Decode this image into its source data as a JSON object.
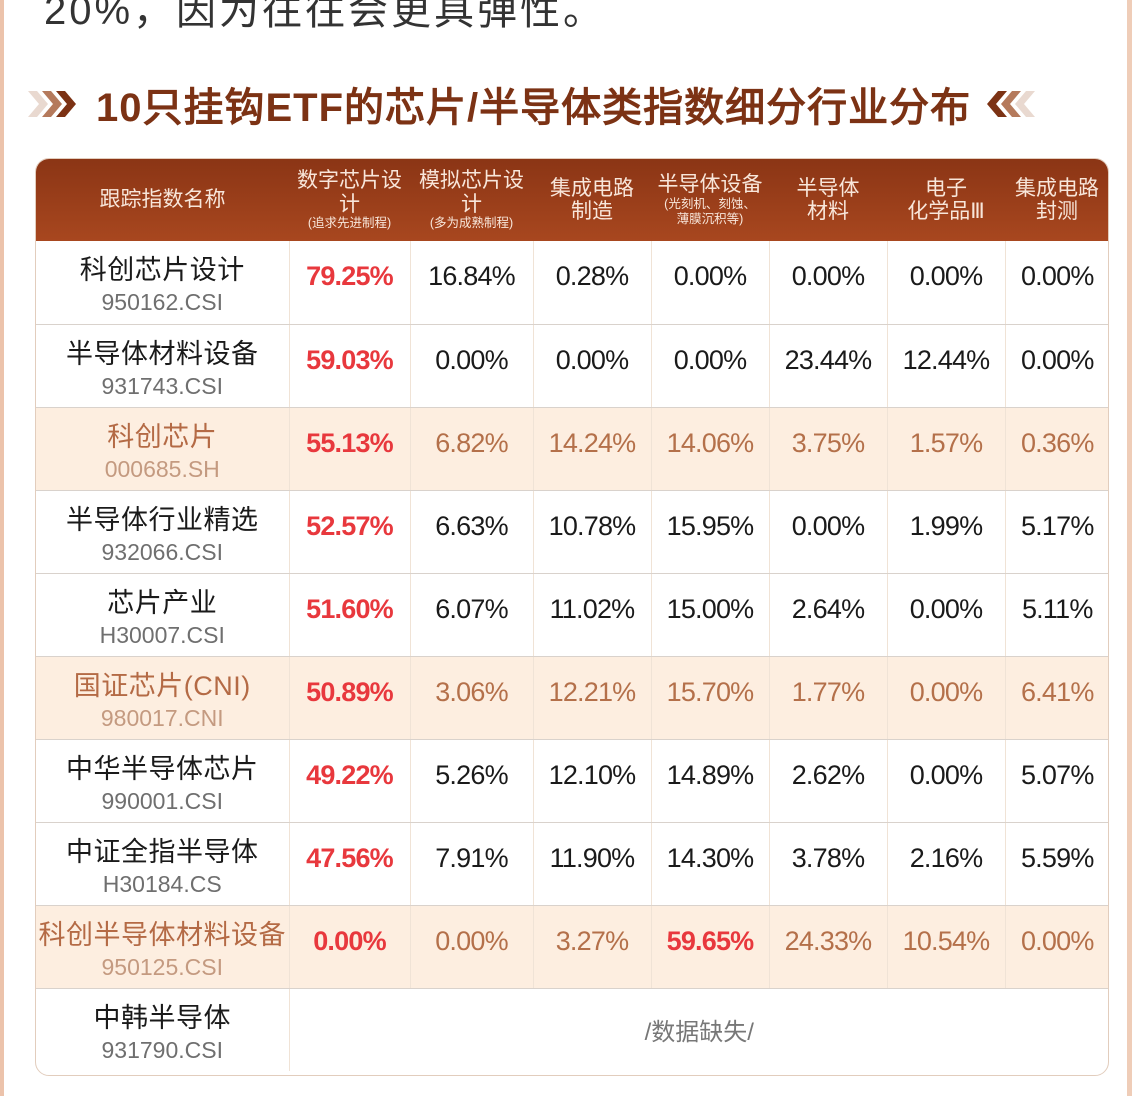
{
  "intro_text": "20%，因为往往会更具弹性。",
  "section": {
    "title": "10只挂钩ETF的芯片/半导体类指数细分行业分布",
    "left_icon": "double-chevron-right-icon",
    "right_icon": "double-chevron-left-icon",
    "accent_color": "#7c3214"
  },
  "table": {
    "header_colors": {
      "from": "#8b3515",
      "to": "#a8471f",
      "text": "#f8e6da"
    },
    "columns": [
      {
        "label": "跟踪指数名称",
        "sub": ""
      },
      {
        "label": "数字芯片设计",
        "sub": "(追求先进制程)"
      },
      {
        "label": "模拟芯片设计",
        "sub": "(多为成熟制程)"
      },
      {
        "label": "集成电路",
        "label2": "制造",
        "sub": ""
      },
      {
        "label": "半导体设备",
        "sub": "(光刻机、刻蚀、",
        "sub2": "薄膜沉积等)"
      },
      {
        "label": "半导体",
        "label2": "材料",
        "sub": ""
      },
      {
        "label": "电子",
        "label2": "化学品Ⅲ",
        "sub": ""
      },
      {
        "label": "集成电路",
        "label2": "封测",
        "sub": ""
      }
    ],
    "rows": [
      {
        "name": "科创芯片设计",
        "code": "950162.CSI",
        "highlight": false,
        "values": [
          "79.25%",
          "16.84%",
          "0.28%",
          "0.00%",
          "0.00%",
          "0.00%",
          "0.00%"
        ],
        "emphasis": [
          0
        ]
      },
      {
        "name": "半导体材料设备",
        "code": "931743.CSI",
        "highlight": false,
        "values": [
          "59.03%",
          "0.00%",
          "0.00%",
          "0.00%",
          "23.44%",
          "12.44%",
          "0.00%"
        ],
        "emphasis": [
          0
        ]
      },
      {
        "name": "科创芯片",
        "code": "000685.SH",
        "highlight": true,
        "values": [
          "55.13%",
          "6.82%",
          "14.24%",
          "14.06%",
          "3.75%",
          "1.57%",
          "0.36%"
        ],
        "emphasis": [
          0
        ]
      },
      {
        "name": "半导体行业精选",
        "code": "932066.CSI",
        "highlight": false,
        "values": [
          "52.57%",
          "6.63%",
          "10.78%",
          "15.95%",
          "0.00%",
          "1.99%",
          "5.17%"
        ],
        "emphasis": [
          0
        ]
      },
      {
        "name": "芯片产业",
        "code": "H30007.CSI",
        "highlight": false,
        "values": [
          "51.60%",
          "6.07%",
          "11.02%",
          "15.00%",
          "2.64%",
          "0.00%",
          "5.11%"
        ],
        "emphasis": [
          0
        ]
      },
      {
        "name": "国证芯片(CNI)",
        "code": "980017.CNI",
        "highlight": true,
        "values": [
          "50.89%",
          "3.06%",
          "12.21%",
          "15.70%",
          "1.77%",
          "0.00%",
          "6.41%"
        ],
        "emphasis": [
          0
        ]
      },
      {
        "name": "中华半导体芯片",
        "code": "990001.CSI",
        "highlight": false,
        "values": [
          "49.22%",
          "5.26%",
          "12.10%",
          "14.89%",
          "2.62%",
          "0.00%",
          "5.07%"
        ],
        "emphasis": [
          0
        ]
      },
      {
        "name": "中证全指半导体",
        "code": "H30184.CS",
        "highlight": false,
        "values": [
          "47.56%",
          "7.91%",
          "11.90%",
          "14.30%",
          "3.78%",
          "2.16%",
          "5.59%"
        ],
        "emphasis": [
          0
        ]
      },
      {
        "name": "科创半导体材料设备",
        "code": "950125.CSI",
        "highlight": true,
        "values": [
          "0.00%",
          "0.00%",
          "3.27%",
          "59.65%",
          "24.33%",
          "10.54%",
          "0.00%"
        ],
        "emphasis": [
          0,
          3
        ]
      },
      {
        "name": "中韩半导体",
        "code": "931790.CSI",
        "highlight": false,
        "missing": "/数据缺失/"
      }
    ],
    "emphasis_color": "#e8383d",
    "highlight_row_bg": "#fdeee0",
    "highlight_text_color": "#b4704a"
  },
  "chart_data": {
    "type": "table",
    "title": "10只挂钩ETF的芯片/半导体类指数细分行业分布",
    "columns": [
      "跟踪指数名称",
      "数字芯片设计(追求先进制程)",
      "模拟芯片设计(多为成熟制程)",
      "集成电路制造",
      "半导体设备(光刻机、刻蚀、薄膜沉积等)",
      "半导体材料",
      "电子化学品Ⅲ",
      "集成电路封测"
    ],
    "rows": [
      [
        "科创芯片设计 950162.CSI",
        79.25,
        16.84,
        0.28,
        0.0,
        0.0,
        0.0,
        0.0
      ],
      [
        "半导体材料设备 931743.CSI",
        59.03,
        0.0,
        0.0,
        0.0,
        23.44,
        12.44,
        0.0
      ],
      [
        "科创芯片 000685.SH",
        55.13,
        6.82,
        14.24,
        14.06,
        3.75,
        1.57,
        0.36
      ],
      [
        "半导体行业精选 932066.CSI",
        52.57,
        6.63,
        10.78,
        15.95,
        0.0,
        1.99,
        5.17
      ],
      [
        "芯片产业 H30007.CSI",
        51.6,
        6.07,
        11.02,
        15.0,
        2.64,
        0.0,
        5.11
      ],
      [
        "国证芯片(CNI) 980017.CNI",
        50.89,
        3.06,
        12.21,
        15.7,
        1.77,
        0.0,
        6.41
      ],
      [
        "中华半导体芯片 990001.CSI",
        49.22,
        5.26,
        12.1,
        14.89,
        2.62,
        0.0,
        5.07
      ],
      [
        "中证全指半导体 H30184.CS",
        47.56,
        7.91,
        11.9,
        14.3,
        3.78,
        2.16,
        5.59
      ],
      [
        "科创半导体材料设备 950125.CSI",
        0.0,
        0.0,
        3.27,
        59.65,
        24.33,
        10.54,
        0.0
      ],
      [
        "中韩半导体 931790.CSI",
        null,
        null,
        null,
        null,
        null,
        null,
        null
      ]
    ],
    "unit": "%",
    "notes": "中韩半导体: /数据缺失/"
  }
}
